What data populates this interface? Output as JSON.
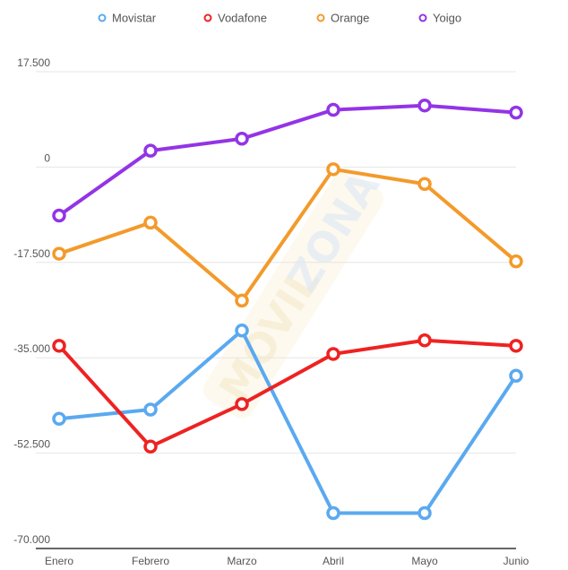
{
  "chart_data": {
    "type": "line",
    "categories": [
      "Enero",
      "Febrero",
      "Marzo",
      "Abril",
      "Mayo",
      "Junio"
    ],
    "yticks": [
      "17.500",
      "0",
      "-17.500",
      "-35.000",
      "-52.500",
      "-70.000"
    ],
    "ylim": [
      -70000,
      17500
    ],
    "grid": true,
    "legend_position": "top-center",
    "series": [
      {
        "name": "Movistar",
        "color": "#5aa9f0",
        "values": [
          -46200,
          -44500,
          -30000,
          -63500,
          -63500,
          -38300
        ]
      },
      {
        "name": "Vodafone",
        "color": "#ee2222",
        "values": [
          -32800,
          -51300,
          -43500,
          -34300,
          -31800,
          -32800
        ]
      },
      {
        "name": "Orange",
        "color": "#f39a2b",
        "values": [
          -15900,
          -10200,
          -24500,
          -400,
          -3100,
          -17300
        ]
      },
      {
        "name": "Yoigo",
        "color": "#9334e6",
        "values": [
          -8900,
          3000,
          5200,
          10500,
          11300,
          10000
        ]
      }
    ]
  },
  "watermark": {
    "text": "MOVILZONA",
    "part1": "MOVIL",
    "part2": "ZONA"
  }
}
